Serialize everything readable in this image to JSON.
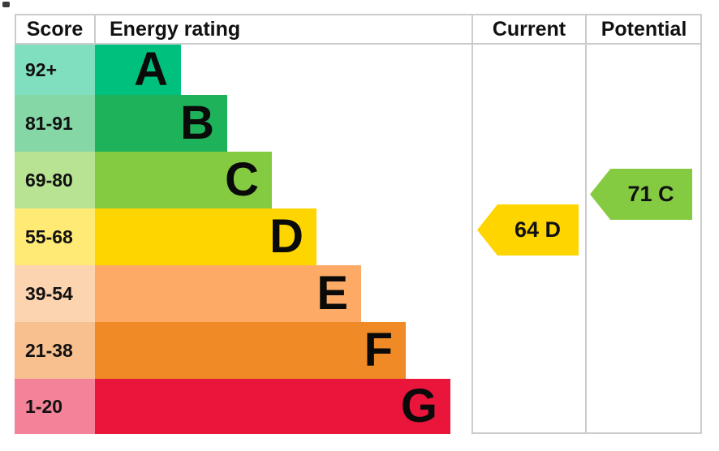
{
  "header": {
    "score": "Score",
    "energy_rating": "Energy rating",
    "current": "Current",
    "potential": "Potential"
  },
  "chart_data": {
    "type": "bar",
    "chart_kind": "epc-energy-rating",
    "title": "",
    "columns": [
      "Score",
      "Energy rating",
      "Current",
      "Potential"
    ],
    "bands": [
      {
        "score_range": "92+",
        "letter": "A",
        "min": 92,
        "max": 100,
        "bar_color": "#00c07e",
        "score_cell_color": "#7fdfbe"
      },
      {
        "score_range": "81-91",
        "letter": "B",
        "min": 81,
        "max": 91,
        "bar_color": "#1eb25a",
        "score_cell_color": "#86d7a6"
      },
      {
        "score_range": "69-80",
        "letter": "C",
        "min": 69,
        "max": 80,
        "bar_color": "#85cb42",
        "score_cell_color": "#b8e393"
      },
      {
        "score_range": "55-68",
        "letter": "D",
        "min": 55,
        "max": 68,
        "bar_color": "#ffd500",
        "score_cell_color": "#ffea75"
      },
      {
        "score_range": "39-54",
        "letter": "E",
        "min": 39,
        "max": 54,
        "bar_color": "#fcaa65",
        "score_cell_color": "#fdd4b0"
      },
      {
        "score_range": "21-38",
        "letter": "F",
        "min": 21,
        "max": 38,
        "bar_color": "#ef8a27",
        "score_cell_color": "#f7c08e"
      },
      {
        "score_range": "1-20",
        "letter": "G",
        "min": 1,
        "max": 20,
        "bar_color": "#e9153b",
        "score_cell_color": "#f4839a"
      }
    ],
    "markers": [
      {
        "column": "current",
        "value": 64,
        "rating": "D",
        "label": "64 D",
        "color": "#ffd500"
      },
      {
        "column": "potential",
        "value": 71,
        "rating": "C",
        "label": "71 C",
        "color": "#85cb42"
      }
    ]
  },
  "colors": {
    "border": "#cccccc",
    "text": "#000000"
  }
}
